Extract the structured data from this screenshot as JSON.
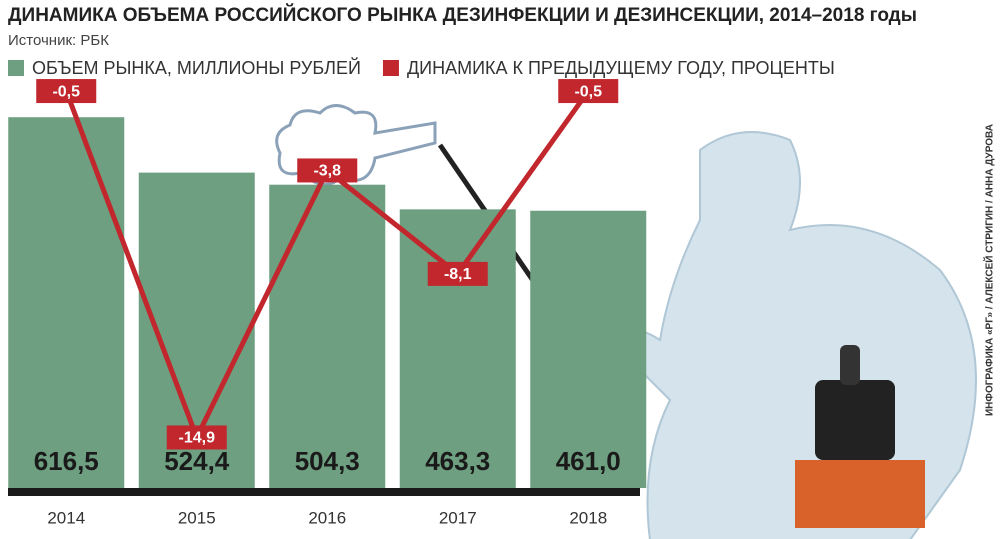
{
  "chart_data": {
    "type": "bar",
    "title": "ДИНАМИКА ОБЪЕМА РОССИЙСКОГО РЫНКА ДЕЗИНФЕКЦИИ И ДЕЗИНСЕКЦИИ, 2014–2018 годы",
    "subtitle": "Источник: РБК",
    "credit": "ИНФОГРАФИКА «РГ» / АЛЕКСЕЙ СТРИГИН / АННА ДУРОВА",
    "categories": [
      "2014",
      "2015",
      "2016",
      "2017",
      "2018"
    ],
    "series": [
      {
        "name": "ОБЪЕМ РЫНКА, МИЛЛИОНЫ РУБЛЕЙ",
        "color": "#6d9f80",
        "type": "bar",
        "values": [
          616.5,
          524.4,
          504.3,
          463.3,
          461.0
        ],
        "value_labels": [
          "616,5",
          "524,4",
          "504,3",
          "463,3",
          "461,0"
        ]
      },
      {
        "name": "ДИНАМИКА К ПРЕДЫДУЩЕМУ ГОДУ, ПРОЦЕНТЫ",
        "color": "#c1272d",
        "type": "line",
        "axis": "y2",
        "values": [
          -0.5,
          -14.9,
          -3.8,
          -8.1,
          -0.5
        ],
        "value_labels": [
          "-0,5",
          "-14,9",
          "-3,8",
          "-8,1",
          "-0,5"
        ]
      }
    ],
    "ylim": [
      0,
      700
    ],
    "y2lim": [
      -17,
      0.5
    ]
  }
}
